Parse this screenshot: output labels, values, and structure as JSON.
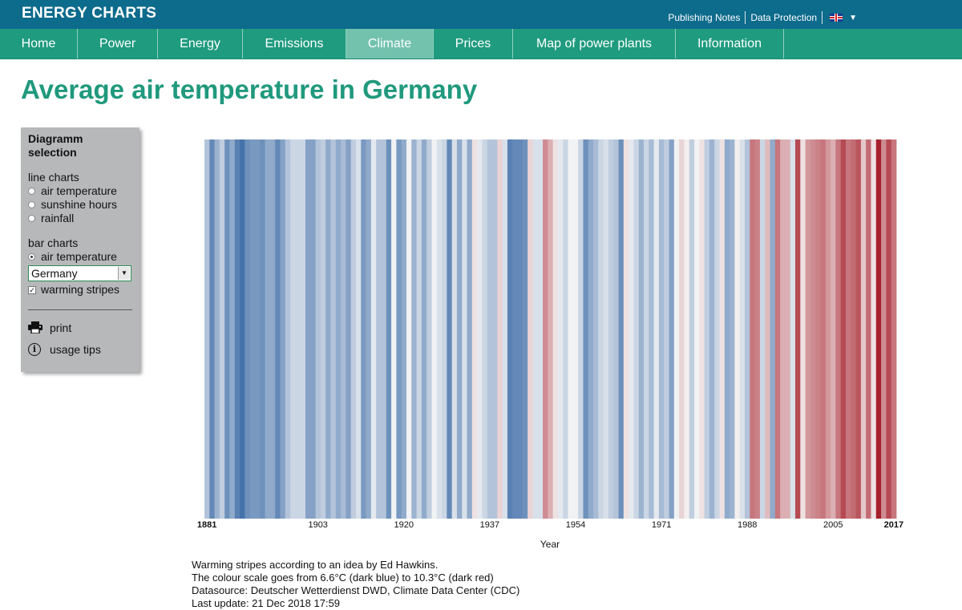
{
  "header": {
    "brand": "ENERGY CHARTS",
    "links": [
      "Publishing Notes",
      "Data Protection"
    ],
    "language_flag": "uk-flag-icon"
  },
  "nav": {
    "items": [
      "Home",
      "Power",
      "Energy",
      "Emissions",
      "Climate",
      "Prices",
      "Map of power plants",
      "Information"
    ],
    "active": "Climate"
  },
  "page": {
    "title": "Average air temperature in Germany"
  },
  "panel": {
    "heading": "Diagramm selection",
    "line_charts": {
      "title": "line charts",
      "options": [
        "air temperature",
        "sunshine hours",
        "rainfall"
      ]
    },
    "bar_charts": {
      "title": "bar charts",
      "option": "air temperature",
      "selected": true
    },
    "region_select": {
      "value": "Germany"
    },
    "warming_stripes": {
      "label": "warming stripes",
      "checked": true
    },
    "tools": {
      "print": "print",
      "usage_tips": "usage tips"
    }
  },
  "notes": {
    "line1": "Warming stripes according to an idea by Ed Hawkins.",
    "line2": "The colour scale goes from 6.6°C (dark blue) to 10.3°C (dark red)",
    "line3": "Datasource: Deutscher Wetterdienst DWD, Climate Data Center (CDC)",
    "line4": "Last update: 21 Dec 2018 17:59"
  },
  "colors": {
    "topbar": "#0d6b8c",
    "nav": "#1f9b7f",
    "nav_active": "#72c2ae",
    "title": "#20997d",
    "panel": "#b7b8ba",
    "scale_cold": "#2c5fa0",
    "scale_mid": "#f7f7f7",
    "scale_warm": "#a5202b"
  },
  "chart_data": {
    "type": "heatmap",
    "chart_kind": "warming stripes",
    "xlabel": "Year",
    "x_start": 1881,
    "x_end": 2017,
    "x_ticks": [
      1881,
      1903,
      1920,
      1937,
      1954,
      1971,
      1988,
      2005,
      2017
    ],
    "scale_min": 6.6,
    "scale_max": 10.3,
    "values": [
      7.9,
      7.2,
      7.7,
      8.0,
      7.3,
      7.6,
      7.1,
      6.9,
      7.3,
      7.4,
      7.4,
      7.3,
      7.6,
      7.6,
      7.2,
      7.5,
      7.9,
      8.1,
      8.1,
      8.1,
      7.5,
      7.5,
      7.9,
      8.0,
      7.6,
      7.9,
      7.6,
      7.8,
      7.5,
      8.0,
      8.2,
      7.4,
      7.6,
      8.3,
      7.9,
      7.9,
      7.3,
      8.4,
      7.4,
      7.6,
      8.4,
      7.7,
      8.1,
      7.6,
      8.0,
      8.4,
      8.2,
      8.1,
      7.2,
      8.2,
      7.6,
      8.2,
      7.6,
      8.6,
      8.3,
      8.1,
      7.9,
      7.9,
      8.7,
      8.2,
      7.1,
      7.2,
      7.2,
      7.3,
      8.7,
      8.2,
      8.2,
      9.3,
      9.0,
      8.6,
      8.3,
      8.1,
      8.4,
      8.4,
      8.1,
      7.3,
      7.6,
      7.8,
      8.1,
      8.2,
      8.0,
      7.9,
      7.3,
      8.6,
      8.3,
      8.1,
      7.7,
      8.1,
      7.8,
      8.3,
      7.8,
      8.0,
      7.5,
      8.4,
      8.7,
      8.5,
      8.0,
      8.4,
      8.6,
      8.0,
      7.7,
      8.1,
      8.6,
      7.6,
      7.7,
      8.5,
      8.2,
      7.9,
      9.5,
      9.4,
      8.1,
      8.9,
      7.6,
      9.5,
      9.0,
      9.0,
      8.2,
      9.9,
      8.6,
      9.2,
      9.3,
      9.4,
      9.5,
      9.2,
      9.0,
      9.5,
      9.9,
      9.5,
      9.6,
      9.8,
      8.8,
      9.6,
      8.6,
      10.3,
      9.3,
      9.9,
      9.5
    ]
  }
}
